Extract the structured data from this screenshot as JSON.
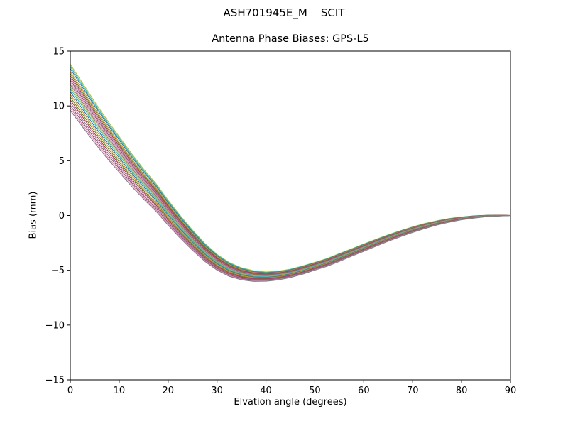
{
  "chart_data": {
    "type": "line",
    "suptitle": "ASH701945E_M    SCIT",
    "title": "Antenna Phase Biases: GPS-L5",
    "xlabel": "Elvation angle (degrees)",
    "ylabel": "Bias (mm)",
    "xlim": [
      0,
      90
    ],
    "ylim": [
      -15,
      15
    ],
    "grid": false,
    "legend": "none",
    "x_tick_values": [
      0,
      10,
      20,
      30,
      40,
      50,
      60,
      70,
      80,
      90
    ],
    "x_tick_labels": [
      "0",
      "10",
      "20",
      "30",
      "40",
      "50",
      "60",
      "70",
      "80",
      "90"
    ],
    "y_tick_values": [
      -15,
      -10,
      -5,
      0,
      5,
      10,
      15
    ],
    "y_tick_labels": [
      "−15",
      "−10",
      "−5",
      "0",
      "5",
      "10",
      "15"
    ],
    "x": [
      0,
      2.5,
      5,
      7.5,
      10,
      12.5,
      15,
      17.5,
      20,
      22.5,
      25,
      27.5,
      30,
      32.5,
      35,
      37.5,
      40,
      42.5,
      45,
      47.5,
      50,
      52.5,
      55,
      57.5,
      60,
      62.5,
      65,
      67.5,
      70,
      72.5,
      75,
      77.5,
      80,
      82.5,
      85,
      87.5,
      90
    ],
    "base": [
      11.6,
      10.0,
      8.4,
      6.9,
      5.5,
      4.1,
      2.8,
      1.6,
      0.2,
      -1.1,
      -2.3,
      -3.4,
      -4.3,
      -4.95,
      -5.35,
      -5.55,
      -5.6,
      -5.5,
      -5.3,
      -5.0,
      -4.65,
      -4.3,
      -3.85,
      -3.4,
      -2.95,
      -2.5,
      -2.07,
      -1.67,
      -1.3,
      -0.97,
      -0.68,
      -0.45,
      -0.27,
      -0.14,
      -0.05,
      -0.01,
      0.0
    ],
    "spread": [
      1.0,
      0.95,
      0.89,
      0.83,
      0.77,
      0.71,
      0.65,
      0.6,
      0.54,
      0.49,
      0.44,
      0.39,
      0.34,
      0.3,
      0.26,
      0.23,
      0.2,
      0.19,
      0.18,
      0.18,
      0.17,
      0.17,
      0.17,
      0.16,
      0.16,
      0.15,
      0.14,
      0.13,
      0.12,
      0.11,
      0.09,
      0.08,
      0.06,
      0.05,
      0.03,
      0.02,
      0.0
    ],
    "series": [
      {
        "offset": 2.2,
        "color": "#bcbd22"
      },
      {
        "offset": 2.0,
        "color": "#17becf"
      },
      {
        "offset": 1.8,
        "color": "#1f77b4"
      },
      {
        "offset": 1.55,
        "color": "#ff7f0e"
      },
      {
        "offset": 1.35,
        "color": "#2ca02c"
      },
      {
        "offset": 1.15,
        "color": "#d62728"
      },
      {
        "offset": 0.95,
        "color": "#9467bd"
      },
      {
        "offset": 0.75,
        "color": "#8c564b"
      },
      {
        "offset": 0.55,
        "color": "#e377c2"
      },
      {
        "offset": 0.35,
        "color": "#7f7f7f"
      },
      {
        "offset": 0.15,
        "color": "#bcbd22"
      },
      {
        "offset": -0.05,
        "color": "#17becf"
      },
      {
        "offset": -0.3,
        "color": "#1f77b4"
      },
      {
        "offset": -0.55,
        "color": "#ff7f0e"
      },
      {
        "offset": -0.8,
        "color": "#2ca02c"
      },
      {
        "offset": -1.05,
        "color": "#d62728"
      },
      {
        "offset": -1.3,
        "color": "#9467bd"
      },
      {
        "offset": -1.55,
        "color": "#8c564b"
      },
      {
        "offset": -1.78,
        "color": "#e377c2"
      },
      {
        "offset": -2.0,
        "color": "#7f7f7f"
      }
    ],
    "axis_color": "#000000",
    "background_color": "#ffffff"
  }
}
